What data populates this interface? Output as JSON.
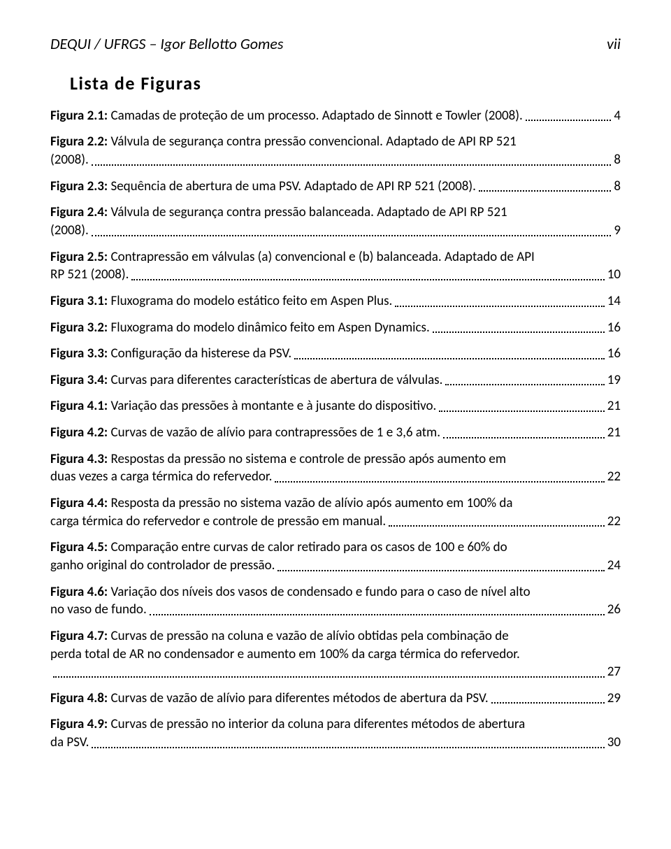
{
  "header": {
    "left": "DEQUI / UFRGS – Igor Bellotto Gomes",
    "right": "vii"
  },
  "section_title": "Lista de Figuras",
  "entries": [
    {
      "label": "Figura 2.1:",
      "text": " Camadas de proteção de um processo. Adaptado de Sinnott e Towler (2008).",
      "page": "4",
      "multiline": false
    },
    {
      "label": "Figura 2.2:",
      "text": " Válvula de segurança contra pressão convencional. Adaptado de API RP 521 (2008).",
      "page": "8",
      "multiline": true,
      "break_after": "Adaptado de API RP 521"
    },
    {
      "label": "Figura 2.3:",
      "text": " Sequência de abertura de uma PSV. Adaptado de API RP 521 (2008). ",
      "page": "8",
      "multiline": false
    },
    {
      "label": "Figura 2.4:",
      "text": " Válvula de segurança contra pressão balanceada. Adaptado de API RP 521 (2008).",
      "page": "9",
      "multiline": true,
      "break_after": "Adaptado de API RP 521"
    },
    {
      "label": "Figura 2.5:",
      "text": " Contrapressão em válvulas (a) convencional e (b) balanceada. Adaptado de API RP 521 (2008). ",
      "page": "10",
      "multiline": true,
      "break_after": "Adaptado de API"
    },
    {
      "label": "Figura 3.1:",
      "text": " Fluxograma do modelo estático feito em Aspen Plus.",
      "page": "14",
      "multiline": false
    },
    {
      "label": "Figura 3.2:",
      "text": " Fluxograma do modelo dinâmico feito em Aspen Dynamics. ",
      "page": "16",
      "multiline": false
    },
    {
      "label": "Figura 3.3:",
      "text": " Configuração da histerese da PSV.",
      "page": "16",
      "multiline": false
    },
    {
      "label": "Figura 3.4:",
      "text": " Curvas para diferentes características de abertura de válvulas. ",
      "page": "19",
      "multiline": false
    },
    {
      "label": "Figura 4.1:",
      "text": " Variação das pressões à montante e à jusante do dispositivo. ",
      "page": "21",
      "multiline": false
    },
    {
      "label": "Figura 4.2:",
      "text": " Curvas de vazão de alívio para contrapressões de 1 e 3,6 atm. ",
      "page": "21",
      "multiline": false
    },
    {
      "label": "Figura 4.3:",
      "text": " Respostas da pressão no sistema e controle de pressão após aumento em duas vezes a carga térmica do refervedor. ",
      "page": "22",
      "multiline": true,
      "break_after": "aumento em"
    },
    {
      "label": "Figura 4.4:",
      "text": " Resposta da pressão no sistema vazão de alívio após aumento em 100% da carga térmica do refervedor e controle de pressão em manual. ",
      "page": "22",
      "multiline": true,
      "break_after": "100% da"
    },
    {
      "label": "Figura 4.5:",
      "text": " Comparação entre curvas de calor retirado para os casos de 100 e 60% do ganho original do controlador de pressão. ",
      "page": "24",
      "multiline": true,
      "break_after": "60% do"
    },
    {
      "label": "Figura 4.6:",
      "text": " Variação dos níveis dos vasos de condensado e fundo para o caso de nível alto no vaso de fundo. ",
      "page": "26",
      "multiline": true,
      "break_after": "nível alto"
    },
    {
      "label": "Figura 4.7:",
      "text": " Curvas de pressão na coluna e vazão de alívio obtidas pela combinação de perda total de AR no condensador e aumento em 100% da carga térmica do refervedor.",
      "page": "27",
      "multiline": true,
      "break_after": "combinação de",
      "second_break_after": "refervedor.",
      "dots_on_own_line": true
    },
    {
      "label": "Figura 4.8:",
      "text": " Curvas de vazão de alívio para diferentes métodos de abertura da PSV. ",
      "page": "29",
      "multiline": false
    },
    {
      "label": "Figura 4.9:",
      "text": " Curvas de pressão no interior da coluna para diferentes métodos de abertura da PSV.",
      "page": "30",
      "multiline": true,
      "break_after": "abertura"
    }
  ]
}
